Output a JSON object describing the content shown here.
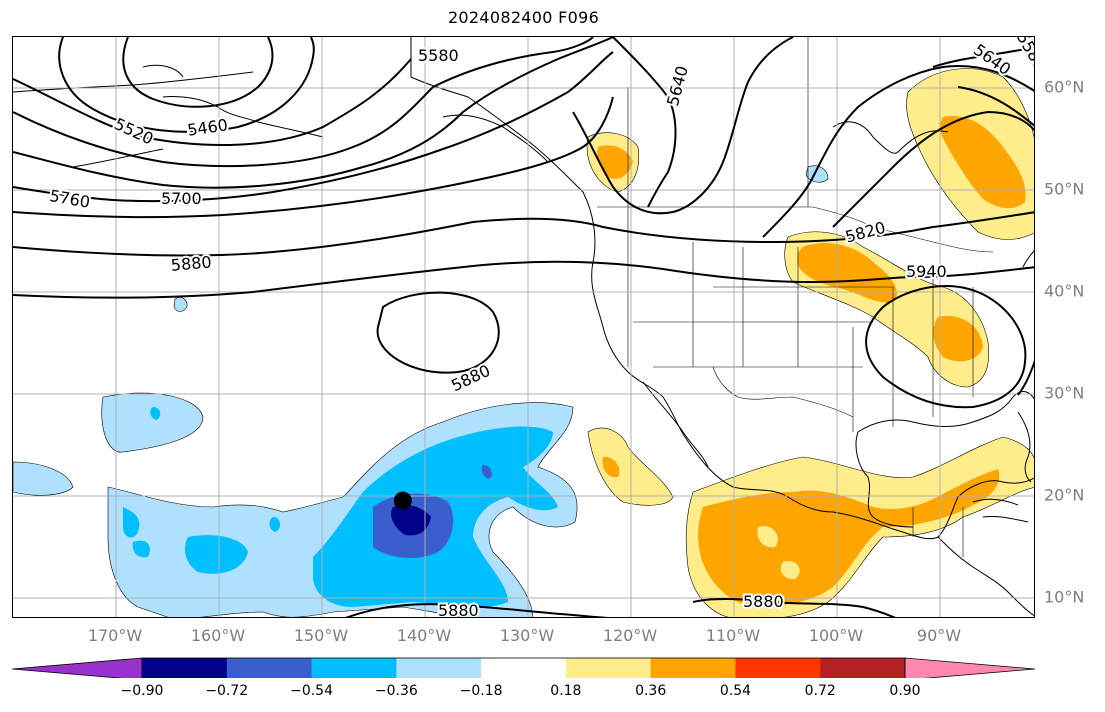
{
  "title": "2024082400 F096",
  "map": {
    "projection": "plate-carree",
    "lon_range": [
      -180,
      -80
    ],
    "lat_range": [
      7,
      64
    ],
    "gridlines": true,
    "lon_labels": [
      "170°W",
      "160°W",
      "150°W",
      "140°W",
      "130°W",
      "120°W",
      "110°W",
      "100°W",
      "90°W"
    ],
    "lat_labels": [
      "60°N",
      "50°N",
      "40°N",
      "30°N",
      "20°N",
      "10°N"
    ],
    "lon_label_values": [
      -170,
      -160,
      -150,
      -140,
      -130,
      -120,
      -110,
      -100,
      -90
    ],
    "lat_label_values": [
      60,
      50,
      40,
      30,
      20,
      10
    ],
    "contour_labels": [
      "5580",
      "5640",
      "5520",
      "5460",
      "5760",
      "5700",
      "5820",
      "5940",
      "5880"
    ],
    "marker": {
      "lon": -141.9,
      "lat": 18.6,
      "color": "#000000"
    }
  },
  "colorbar": {
    "levels": [
      -0.9,
      -0.72,
      -0.54,
      -0.36,
      -0.18,
      0.18,
      0.36,
      0.54,
      0.72,
      0.9
    ],
    "tick_labels": [
      "−0.90",
      "−0.72",
      "−0.54",
      "−0.36",
      "−0.18",
      "0.18",
      "0.36",
      "0.54",
      "0.72",
      "0.90"
    ],
    "colors": [
      "#9932cc",
      "#00008b",
      "#3a5fcd",
      "#00bfff",
      "#afe0fe",
      "#ffffff",
      "#ffec8b",
      "#ffa500",
      "#ff3600",
      "#b22222",
      "#ff88b0"
    ],
    "extend": "both"
  },
  "colors": {
    "neg_light": "#afe0fe",
    "neg_mid": "#00bfff",
    "neg_dark": "#3a5fcd",
    "neg_darkest": "#00008b",
    "pos_light": "#ffec8b",
    "pos_mid": "#ffa500",
    "grid": "#b0b0b0",
    "axis_label": "#7f7f7f"
  }
}
